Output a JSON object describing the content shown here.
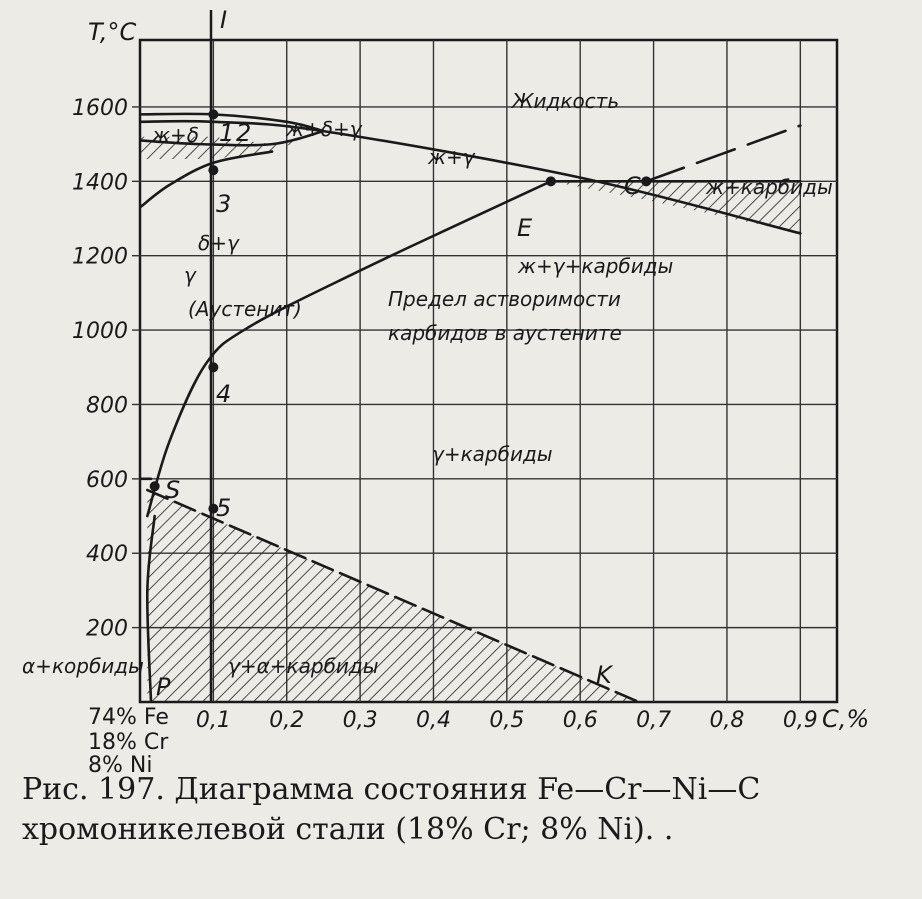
{
  "chart_data": {
    "type": "phase-diagram",
    "y_axis_label": "T,°C",
    "x_axis_label": "C,%",
    "y_ticks": [
      200,
      400,
      600,
      800,
      1000,
      1200,
      1400,
      1600
    ],
    "x_ticks": [
      "0,1",
      "0,2",
      "0,3",
      "0,4",
      "0,5",
      "0,6",
      "0,7",
      "0,8",
      "0,9"
    ],
    "x_range": [
      0,
      0.95
    ],
    "y_range": [
      0,
      1780
    ],
    "composition": [
      "74% Fe",
      "18% Cr",
      "8% Ni"
    ],
    "vertical_line_label": "I",
    "point_labels": [
      "1",
      "2",
      "3",
      "4",
      "5",
      "S",
      "P",
      "E",
      "C",
      "K"
    ],
    "region_labels": [
      "Жидкость",
      "ж+δ",
      "ж+δ+γ",
      "ж+γ",
      "ж+карбиды",
      "δ+γ",
      "ж+γ+карбиды",
      "γ",
      "(Аустенит)",
      "Предел астворимости",
      "карбидов в аустените",
      "γ+карбиды",
      "α+корбиды",
      "γ+α+карбиды"
    ],
    "curves": {
      "solubility_limit_SE": [
        [
          0.01,
          500
        ],
        [
          0.04,
          700
        ],
        [
          0.09,
          910
        ],
        [
          0.15,
          1010
        ],
        [
          0.3,
          1160
        ],
        [
          0.44,
          1290
        ],
        [
          0.56,
          1400
        ]
      ],
      "liquidus": [
        [
          0.0,
          1560
        ],
        [
          0.1,
          1560
        ],
        [
          0.25,
          1535
        ],
        [
          0.6,
          1410
        ],
        [
          0.9,
          1260
        ]
      ],
      "eutectic_line_EC": [
        [
          0.56,
          1400
        ],
        [
          0.9,
          1400
        ]
      ],
      "liquidus_carbide_branch": [
        [
          0.69,
          1400
        ],
        [
          0.9,
          1550
        ]
      ],
      "carbide_boundary_SK": [
        [
          0.01,
          570
        ],
        [
          0.68,
          0
        ]
      ]
    }
  },
  "caption": {
    "line1": "Рис.  197.  Диаграмма  состояния  Fe—Cr—Ni—C",
    "line2": "хромоникелевой стали (18% Cr; 8% Ni).    ."
  }
}
